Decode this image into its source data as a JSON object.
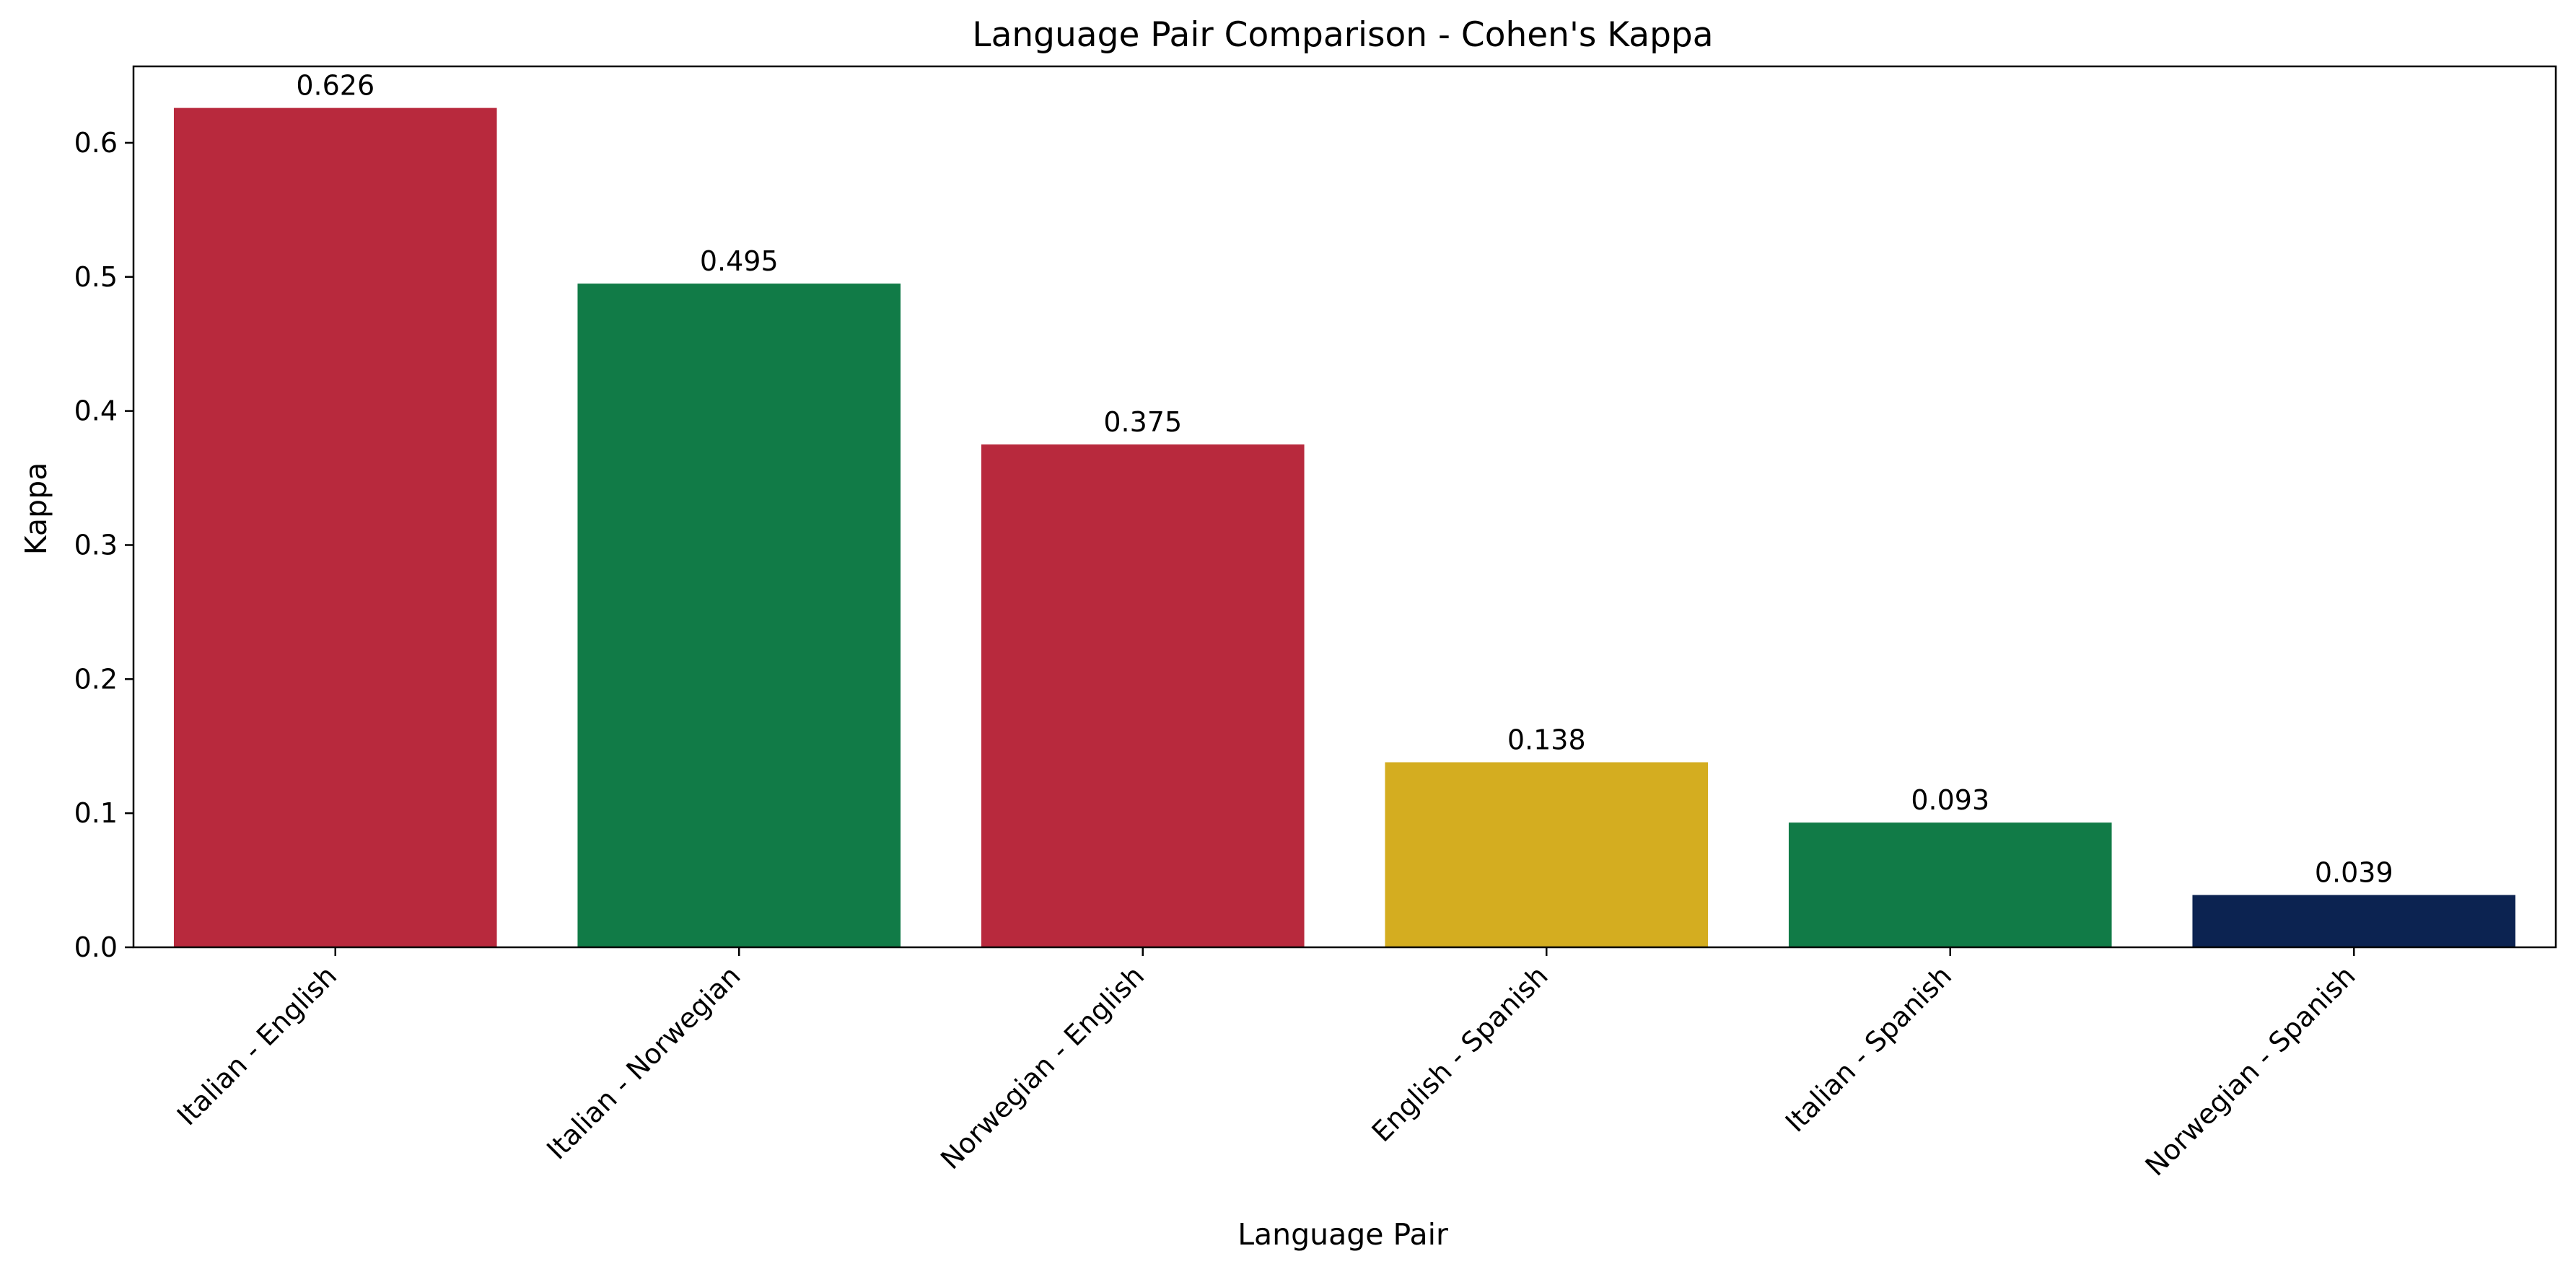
{
  "chart_data": {
    "type": "bar",
    "title": "Language Pair Comparison - Cohen's Kappa",
    "xlabel": "Language Pair",
    "ylabel": "Kappa",
    "categories": [
      "Italian - English",
      "Italian - Norwegian",
      "Norwegian - English",
      "English - Spanish",
      "Italian - Spanish",
      "Norwegian - Spanish"
    ],
    "values": [
      0.626,
      0.495,
      0.375,
      0.138,
      0.093,
      0.039
    ],
    "data_labels": [
      "0.626",
      "0.495",
      "0.375",
      "0.138",
      "0.093",
      "0.039"
    ],
    "bar_colors": [
      "#b8293d",
      "#117b47",
      "#b8293d",
      "#d4ad20",
      "#117b47",
      "#0c2351"
    ],
    "ylim": [
      0,
      0.657
    ],
    "yticks": [
      0.0,
      0.1,
      0.2,
      0.3,
      0.4,
      0.5,
      0.6
    ],
    "ytick_labels": [
      "0.0",
      "0.1",
      "0.2",
      "0.3",
      "0.4",
      "0.5",
      "0.6"
    ],
    "grid": false,
    "legend": "none"
  }
}
